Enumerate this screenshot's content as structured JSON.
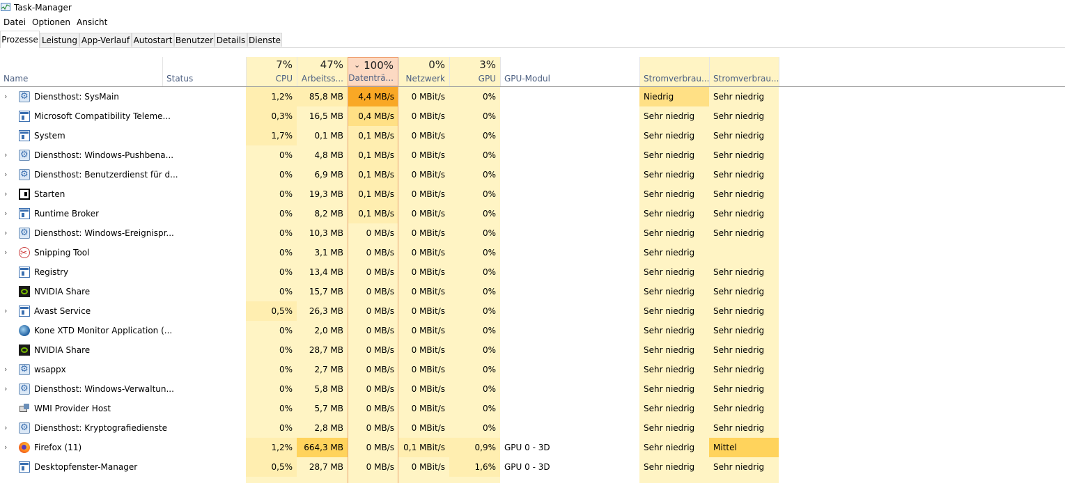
{
  "window": {
    "title": "Task-Manager"
  },
  "menu": [
    "Datei",
    "Optionen",
    "Ansicht"
  ],
  "tabs": [
    "Prozesse",
    "Leistung",
    "App-Verlauf",
    "Autostart",
    "Benutzer",
    "Details",
    "Dienste"
  ],
  "active_tab": "Prozesse",
  "headers": {
    "name": "Name",
    "status": "Status",
    "cpu": {
      "pct": "7%",
      "label": "CPU"
    },
    "mem": {
      "pct": "47%",
      "label": "Arbeitss..."
    },
    "disk": {
      "pct": "100%",
      "label": "Datenträ...",
      "sorted": true,
      "sort_glyph": "⌄"
    },
    "net": {
      "pct": "0%",
      "label": "Netzwerk"
    },
    "gpu": {
      "pct": "3%",
      "label": "GPU"
    },
    "gpu_engine": "GPU-Modul",
    "power": "Stromverbrau...",
    "power_trend": "Stromverbrau..."
  },
  "heat_colors": {
    "base": "#fff4c4",
    "light": "#ffeeb0",
    "medium": "#ffe085",
    "high": "#ffd35c",
    "max": "#f9a825"
  },
  "processes": [
    {
      "name": "Diensthost: SysMain",
      "icon": "gear-icon",
      "expandable": true,
      "cpu": "1,2%",
      "mem": "85,8 MB",
      "disk": "4,4 MB/s",
      "net": "0 MBit/s",
      "gpu": "0%",
      "gpu_engine": "",
      "power": "Niedrig",
      "power_trend": "Sehr niedrig",
      "heat": {
        "cpu": "light",
        "mem": "light",
        "disk": "max",
        "power": "medium"
      }
    },
    {
      "name": "Microsoft Compatibility Teleme...",
      "icon": "window-icon",
      "expandable": false,
      "cpu": "0,3%",
      "mem": "16,5 MB",
      "disk": "0,4 MB/s",
      "net": "0 MBit/s",
      "gpu": "0%",
      "gpu_engine": "",
      "power": "Sehr niedrig",
      "power_trend": "Sehr niedrig",
      "heat": {
        "cpu": "light",
        "disk": "medium"
      }
    },
    {
      "name": "System",
      "icon": "window-icon",
      "expandable": false,
      "cpu": "1,7%",
      "mem": "0,1 MB",
      "disk": "0,1 MB/s",
      "net": "0 MBit/s",
      "gpu": "0%",
      "gpu_engine": "",
      "power": "Sehr niedrig",
      "power_trend": "Sehr niedrig",
      "heat": {
        "cpu": "light",
        "disk": "light"
      }
    },
    {
      "name": "Diensthost: Windows-Pushbena...",
      "icon": "gear-icon",
      "expandable": true,
      "cpu": "0%",
      "mem": "4,8 MB",
      "disk": "0,1 MB/s",
      "net": "0 MBit/s",
      "gpu": "0%",
      "gpu_engine": "",
      "power": "Sehr niedrig",
      "power_trend": "Sehr niedrig",
      "heat": {
        "disk": "light"
      }
    },
    {
      "name": "Diensthost: Benutzerdienst für d...",
      "icon": "gear-icon",
      "expandable": true,
      "cpu": "0%",
      "mem": "6,9 MB",
      "disk": "0,1 MB/s",
      "net": "0 MBit/s",
      "gpu": "0%",
      "gpu_engine": "",
      "power": "Sehr niedrig",
      "power_trend": "Sehr niedrig",
      "heat": {
        "disk": "light"
      }
    },
    {
      "name": "Starten",
      "icon": "start-icon",
      "expandable": true,
      "cpu": "0%",
      "mem": "19,3 MB",
      "disk": "0,1 MB/s",
      "net": "0 MBit/s",
      "gpu": "0%",
      "gpu_engine": "",
      "power": "Sehr niedrig",
      "power_trend": "Sehr niedrig",
      "heat": {
        "disk": "light"
      }
    },
    {
      "name": "Runtime Broker",
      "icon": "window-icon",
      "expandable": true,
      "cpu": "0%",
      "mem": "8,2 MB",
      "disk": "0,1 MB/s",
      "net": "0 MBit/s",
      "gpu": "0%",
      "gpu_engine": "",
      "power": "Sehr niedrig",
      "power_trend": "Sehr niedrig",
      "heat": {
        "disk": "light"
      }
    },
    {
      "name": "Diensthost: Windows-Ereignispr...",
      "icon": "gear-icon",
      "expandable": true,
      "cpu": "0%",
      "mem": "10,3 MB",
      "disk": "0 MB/s",
      "net": "0 MBit/s",
      "gpu": "0%",
      "gpu_engine": "",
      "power": "Sehr niedrig",
      "power_trend": "Sehr niedrig",
      "heat": {}
    },
    {
      "name": "Snipping Tool",
      "icon": "snipping-icon",
      "expandable": true,
      "cpu": "0%",
      "mem": "3,1 MB",
      "disk": "0 MB/s",
      "net": "0 MBit/s",
      "gpu": "0%",
      "gpu_engine": "",
      "power": "Sehr niedrig",
      "power_trend": "",
      "heat": {}
    },
    {
      "name": "Registry",
      "icon": "window-icon",
      "expandable": false,
      "cpu": "0%",
      "mem": "13,4 MB",
      "disk": "0 MB/s",
      "net": "0 MBit/s",
      "gpu": "0%",
      "gpu_engine": "",
      "power": "Sehr niedrig",
      "power_trend": "Sehr niedrig",
      "heat": {}
    },
    {
      "name": "NVIDIA Share",
      "icon": "nvidia-icon",
      "expandable": false,
      "cpu": "0%",
      "mem": "15,7 MB",
      "disk": "0 MB/s",
      "net": "0 MBit/s",
      "gpu": "0%",
      "gpu_engine": "",
      "power": "Sehr niedrig",
      "power_trend": "Sehr niedrig",
      "heat": {}
    },
    {
      "name": "Avast Service",
      "icon": "window-icon",
      "expandable": true,
      "cpu": "0,5%",
      "mem": "26,3 MB",
      "disk": "0 MB/s",
      "net": "0 MBit/s",
      "gpu": "0%",
      "gpu_engine": "",
      "power": "Sehr niedrig",
      "power_trend": "Sehr niedrig",
      "heat": {
        "cpu": "light"
      }
    },
    {
      "name": "Kone XTD Monitor Application (...",
      "icon": "kone-icon",
      "expandable": false,
      "cpu": "0%",
      "mem": "2,0 MB",
      "disk": "0 MB/s",
      "net": "0 MBit/s",
      "gpu": "0%",
      "gpu_engine": "",
      "power": "Sehr niedrig",
      "power_trend": "Sehr niedrig",
      "heat": {}
    },
    {
      "name": "NVIDIA Share",
      "icon": "nvidia-icon",
      "expandable": false,
      "cpu": "0%",
      "mem": "28,7 MB",
      "disk": "0 MB/s",
      "net": "0 MBit/s",
      "gpu": "0%",
      "gpu_engine": "",
      "power": "Sehr niedrig",
      "power_trend": "Sehr niedrig",
      "heat": {}
    },
    {
      "name": "wsappx",
      "icon": "gear-icon",
      "expandable": true,
      "cpu": "0%",
      "mem": "2,7 MB",
      "disk": "0 MB/s",
      "net": "0 MBit/s",
      "gpu": "0%",
      "gpu_engine": "",
      "power": "Sehr niedrig",
      "power_trend": "Sehr niedrig",
      "heat": {}
    },
    {
      "name": "Diensthost: Windows-Verwaltun...",
      "icon": "gear-icon",
      "expandable": true,
      "cpu": "0%",
      "mem": "5,8 MB",
      "disk": "0 MB/s",
      "net": "0 MBit/s",
      "gpu": "0%",
      "gpu_engine": "",
      "power": "Sehr niedrig",
      "power_trend": "Sehr niedrig",
      "heat": {}
    },
    {
      "name": "WMI Provider Host",
      "icon": "wmi-icon",
      "expandable": false,
      "cpu": "0%",
      "mem": "5,7 MB",
      "disk": "0 MB/s",
      "net": "0 MBit/s",
      "gpu": "0%",
      "gpu_engine": "",
      "power": "Sehr niedrig",
      "power_trend": "Sehr niedrig",
      "heat": {}
    },
    {
      "name": "Diensthost: Kryptografiedienste",
      "icon": "gear-icon",
      "expandable": true,
      "cpu": "0%",
      "mem": "2,8 MB",
      "disk": "0 MB/s",
      "net": "0 MBit/s",
      "gpu": "0%",
      "gpu_engine": "",
      "power": "Sehr niedrig",
      "power_trend": "Sehr niedrig",
      "heat": {}
    },
    {
      "name": "Firefox (11)",
      "icon": "firefox-icon",
      "expandable": true,
      "cpu": "1,2%",
      "mem": "664,3 MB",
      "disk": "0 MB/s",
      "net": "0,1 MBit/s",
      "gpu": "0,9%",
      "gpu_engine": "GPU 0 - 3D",
      "power": "Sehr niedrig",
      "power_trend": "Mittel",
      "heat": {
        "cpu": "light",
        "mem": "high",
        "net": "light",
        "gpu": "light",
        "power_trend": "high"
      }
    },
    {
      "name": "Desktopfenster-Manager",
      "icon": "window-icon",
      "expandable": false,
      "cpu": "0,5%",
      "mem": "28,7 MB",
      "disk": "0 MB/s",
      "net": "0 MBit/s",
      "gpu": "1,6%",
      "gpu_engine": "GPU 0 - 3D",
      "power": "Sehr niedrig",
      "power_trend": "Sehr niedrig",
      "heat": {
        "cpu": "light",
        "gpu": "light"
      }
    }
  ]
}
